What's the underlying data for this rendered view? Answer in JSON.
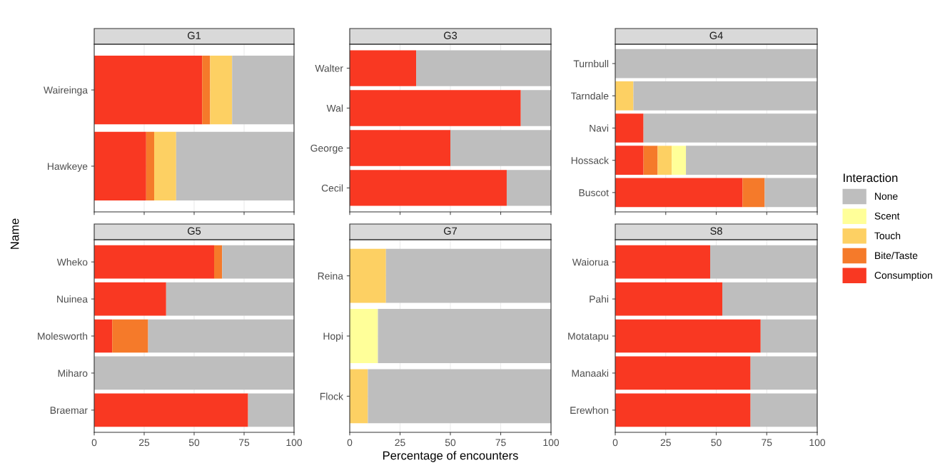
{
  "chart_data": [
    {
      "type": "bar",
      "title": "G1",
      "orientation": "horizontal",
      "stacked": true,
      "ylabel": "Name",
      "categories": [
        "Waireinga",
        "Hawkeye"
      ],
      "xlim": [
        0,
        100
      ],
      "xticks": [
        0,
        25,
        50,
        75,
        100
      ],
      "grid": true,
      "tick_labels": "y",
      "series": [
        {
          "color": "#f93822",
          "values": [
            54,
            26
          ]
        },
        {
          "color": "#f57a2a",
          "values": [
            4,
            4
          ]
        },
        {
          "color": "#fdd063",
          "values": [
            11,
            11
          ]
        },
        {
          "color": "#ffff99",
          "values": [
            0,
            0
          ]
        },
        {
          "color": "#bebebe",
          "values": [
            31,
            59
          ]
        }
      ]
    },
    {
      "type": "bar",
      "title": "G3",
      "orientation": "horizontal",
      "stacked": true,
      "categories": [
        "Walter",
        "Wal",
        "George",
        "Cecil"
      ],
      "xlim": [
        0,
        100
      ],
      "xticks": [
        0,
        25,
        50,
        75,
        100
      ],
      "grid": true,
      "tick_labels": "y",
      "series": [
        {
          "color": "#f93822",
          "values": [
            33,
            85,
            50,
            78
          ]
        },
        {
          "color": "#f57a2a",
          "values": [
            0,
            0,
            0,
            0
          ]
        },
        {
          "color": "#fdd063",
          "values": [
            0,
            0,
            0,
            0
          ]
        },
        {
          "color": "#ffff99",
          "values": [
            0,
            0,
            0,
            0
          ]
        },
        {
          "color": "#bebebe",
          "values": [
            67,
            15,
            50,
            22
          ]
        }
      ]
    },
    {
      "type": "bar",
      "title": "G4",
      "orientation": "horizontal",
      "stacked": true,
      "categories": [
        "Turnbull",
        "Tarndale",
        "Navi",
        "Hossack",
        "Buscot"
      ],
      "xlim": [
        0,
        100
      ],
      "xticks": [
        0,
        25,
        50,
        75,
        100
      ],
      "grid": true,
      "tick_labels": "y",
      "legend": "right",
      "legend_title": "Interaction",
      "series": [
        {
          "name": "Consumption",
          "color": "#f93822",
          "values": [
            0,
            0,
            14,
            14,
            63
          ]
        },
        {
          "name": "Bite/Taste",
          "color": "#f57a2a",
          "values": [
            0,
            0,
            0,
            7,
            11
          ]
        },
        {
          "name": "Touch",
          "color": "#fdd063",
          "values": [
            0,
            9,
            0,
            7,
            0
          ]
        },
        {
          "name": "Scent",
          "color": "#ffff99",
          "values": [
            0,
            0,
            0,
            7,
            0
          ]
        },
        {
          "name": "None",
          "color": "#bebebe",
          "values": [
            100,
            91,
            86,
            65,
            26
          ]
        }
      ]
    },
    {
      "type": "bar",
      "title": "G5",
      "orientation": "horizontal",
      "stacked": true,
      "categories": [
        "Wheko",
        "Nuinea",
        "Molesworth",
        "Miharo",
        "Braemar"
      ],
      "xlim": [
        0,
        100
      ],
      "xticks": [
        0,
        25,
        50,
        75,
        100
      ],
      "grid": true,
      "series": [
        {
          "color": "#f93822",
          "values": [
            60,
            36,
            9,
            0,
            77
          ]
        },
        {
          "color": "#f57a2a",
          "values": [
            4,
            0,
            18,
            0,
            0
          ]
        },
        {
          "color": "#fdd063",
          "values": [
            0,
            0,
            0,
            0,
            0
          ]
        },
        {
          "color": "#ffff99",
          "values": [
            0,
            0,
            0,
            0,
            0
          ]
        },
        {
          "color": "#bebebe",
          "values": [
            36,
            64,
            73,
            100,
            23
          ]
        }
      ]
    },
    {
      "type": "bar",
      "title": "G7",
      "orientation": "horizontal",
      "stacked": true,
      "xlabel": "Percentage of encounters",
      "categories": [
        "Reina",
        "Hopi",
        "Flock"
      ],
      "xlim": [
        0,
        100
      ],
      "xticks": [
        0,
        25,
        50,
        75,
        100
      ],
      "grid": true,
      "series": [
        {
          "color": "#f93822",
          "values": [
            0,
            0,
            0
          ]
        },
        {
          "color": "#f57a2a",
          "values": [
            0,
            0,
            0
          ]
        },
        {
          "color": "#fdd063",
          "values": [
            18,
            0,
            9
          ]
        },
        {
          "color": "#ffff99",
          "values": [
            0,
            14,
            0
          ]
        },
        {
          "color": "#bebebe",
          "values": [
            82,
            86,
            91
          ]
        }
      ]
    },
    {
      "type": "bar",
      "title": "S8",
      "orientation": "horizontal",
      "stacked": true,
      "categories": [
        "Waiorua",
        "Pahi",
        "Motatapu",
        "Manaaki",
        "Erewhon"
      ],
      "xlim": [
        0,
        100
      ],
      "xticks": [
        0,
        25,
        50,
        75,
        100
      ],
      "grid": true,
      "series": [
        {
          "color": "#f93822",
          "values": [
            47,
            53,
            72,
            67,
            67
          ]
        },
        {
          "color": "#f57a2a",
          "values": [
            0,
            0,
            0,
            0,
            0
          ]
        },
        {
          "color": "#fdd063",
          "values": [
            0,
            0,
            0,
            0,
            0
          ]
        },
        {
          "color": "#ffff99",
          "values": [
            0,
            0,
            0,
            0,
            0
          ]
        },
        {
          "color": "#bebebe",
          "values": [
            53,
            47,
            28,
            33,
            33
          ]
        }
      ]
    }
  ]
}
